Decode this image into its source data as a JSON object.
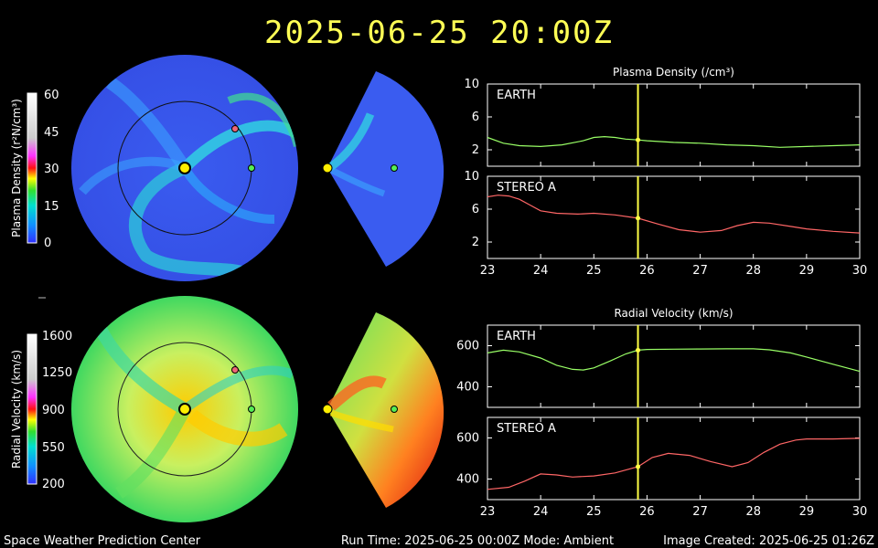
{
  "header": {
    "timestamp": "2025-06-25  20:00Z"
  },
  "colors": {
    "title": "#ffff55",
    "earth_trace": "#99ff66",
    "stereo_trace": "#ff6666",
    "marker": "#ffff44",
    "earth_dot": "#55ee55",
    "stereo_dot": "#ee6677"
  },
  "colorbars": {
    "density": {
      "label": "Plasma Density (r²N/cm³)",
      "ticks": [
        "60",
        "45",
        "30",
        "15",
        "0"
      ]
    },
    "velocity": {
      "label": "Radial Velocity (km/s)",
      "ticks": [
        "1600",
        "1250",
        "900",
        "550",
        "200"
      ]
    }
  },
  "footer": {
    "left": "Space Weather Prediction Center",
    "center": "Run Time: 2025-06-25 00:00Z  Mode: Ambient",
    "right": "Image Created: 2025-06-25 01:26Z"
  },
  "chart_data": [
    {
      "type": "line",
      "title": "Plasma Density (/cm³)",
      "panel": "EARTH",
      "xlim": [
        23,
        30
      ],
      "ylim": [
        0,
        10
      ],
      "yticks": [
        2,
        6,
        10
      ],
      "xticks": [
        23,
        24,
        25,
        26,
        27,
        28,
        29,
        30
      ],
      "show_xtick_labels": false,
      "current_x": 25.83,
      "x": [
        23.0,
        23.3,
        23.6,
        24.0,
        24.4,
        24.8,
        25.0,
        25.2,
        25.4,
        25.6,
        25.83,
        26.0,
        26.5,
        27.0,
        27.5,
        28.0,
        28.5,
        29.0,
        29.5,
        30.0
      ],
      "y": [
        3.5,
        2.8,
        2.5,
        2.4,
        2.6,
        3.1,
        3.5,
        3.6,
        3.5,
        3.3,
        3.2,
        3.1,
        2.9,
        2.8,
        2.6,
        2.5,
        2.3,
        2.4,
        2.5,
        2.6
      ]
    },
    {
      "type": "line",
      "panel": "STEREO A",
      "xlim": [
        23,
        30
      ],
      "ylim": [
        0,
        10
      ],
      "yticks": [
        2,
        6,
        10
      ],
      "xticks": [
        23,
        24,
        25,
        26,
        27,
        28,
        29,
        30
      ],
      "show_xtick_labels": true,
      "current_x": 25.83,
      "x": [
        23.0,
        23.2,
        23.4,
        23.6,
        23.8,
        24.0,
        24.3,
        24.7,
        25.0,
        25.4,
        25.83,
        26.2,
        26.6,
        27.0,
        27.4,
        27.7,
        28.0,
        28.3,
        28.7,
        29.0,
        29.5,
        30.0
      ],
      "y": [
        7.5,
        7.7,
        7.6,
        7.2,
        6.5,
        5.8,
        5.5,
        5.4,
        5.5,
        5.3,
        4.9,
        4.2,
        3.5,
        3.2,
        3.4,
        4.0,
        4.4,
        4.3,
        3.9,
        3.6,
        3.3,
        3.1
      ]
    },
    {
      "type": "line",
      "title": "Radial Velocity (km/s)",
      "panel": "EARTH",
      "xlim": [
        23,
        30
      ],
      "ylim": [
        300,
        700
      ],
      "yticks": [
        400,
        600
      ],
      "xticks": [
        23,
        24,
        25,
        26,
        27,
        28,
        29,
        30
      ],
      "show_xtick_labels": false,
      "current_x": 25.83,
      "x": [
        23.0,
        23.3,
        23.6,
        24.0,
        24.3,
        24.6,
        24.8,
        25.0,
        25.3,
        25.6,
        25.83,
        26.0,
        26.5,
        27.0,
        27.5,
        28.0,
        28.3,
        28.7,
        29.0,
        29.5,
        30.0
      ],
      "y": [
        565,
        578,
        570,
        540,
        505,
        485,
        482,
        492,
        525,
        560,
        578,
        582,
        583,
        584,
        585,
        585,
        580,
        565,
        545,
        510,
        475
      ]
    },
    {
      "type": "line",
      "panel": "STEREO A",
      "xlim": [
        23,
        30
      ],
      "ylim": [
        300,
        700
      ],
      "yticks": [
        400,
        600
      ],
      "xticks": [
        23,
        24,
        25,
        26,
        27,
        28,
        29,
        30
      ],
      "show_xtick_labels": true,
      "current_x": 25.83,
      "x": [
        23.0,
        23.4,
        23.7,
        24.0,
        24.3,
        24.6,
        25.0,
        25.4,
        25.83,
        26.1,
        26.4,
        26.8,
        27.2,
        27.6,
        27.9,
        28.2,
        28.5,
        28.8,
        29.0,
        29.5,
        30.0
      ],
      "y": [
        350,
        360,
        390,
        425,
        420,
        410,
        415,
        430,
        460,
        505,
        525,
        515,
        485,
        460,
        480,
        530,
        570,
        590,
        595,
        595,
        598
      ]
    }
  ]
}
